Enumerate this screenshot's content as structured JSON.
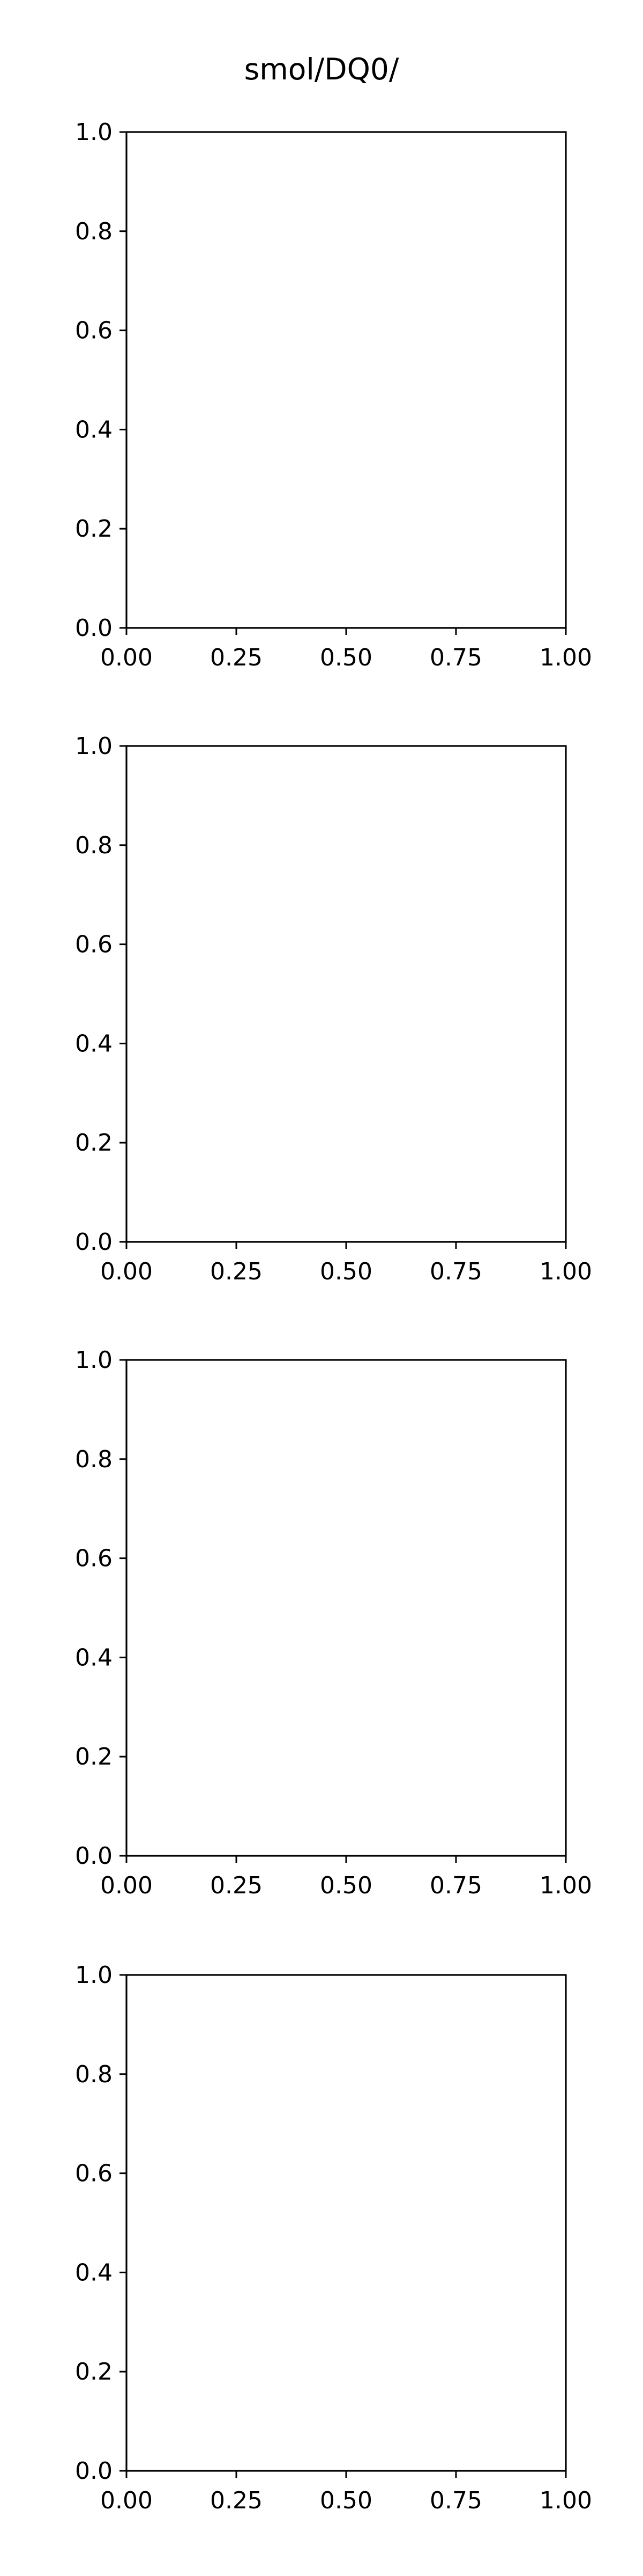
{
  "figure": {
    "title": "smol/DQ0/"
  },
  "chart_data": [
    {
      "type": "line",
      "title": "",
      "xlabel": "",
      "ylabel": "",
      "xlim": [
        0,
        1
      ],
      "ylim": [
        0,
        1
      ],
      "xticks": [
        "0.00",
        "0.25",
        "0.50",
        "0.75",
        "1.00"
      ],
      "yticks": [
        "0.0",
        "0.2",
        "0.4",
        "0.6",
        "0.8",
        "1.0"
      ],
      "series": [],
      "grid": false
    },
    {
      "type": "line",
      "title": "",
      "xlabel": "",
      "ylabel": "",
      "xlim": [
        0,
        1
      ],
      "ylim": [
        0,
        1
      ],
      "xticks": [
        "0.00",
        "0.25",
        "0.50",
        "0.75",
        "1.00"
      ],
      "yticks": [
        "0.0",
        "0.2",
        "0.4",
        "0.6",
        "0.8",
        "1.0"
      ],
      "series": [],
      "grid": false
    },
    {
      "type": "line",
      "title": "",
      "xlabel": "",
      "ylabel": "",
      "xlim": [
        0,
        1
      ],
      "ylim": [
        0,
        1
      ],
      "xticks": [
        "0.00",
        "0.25",
        "0.50",
        "0.75",
        "1.00"
      ],
      "yticks": [
        "0.0",
        "0.2",
        "0.4",
        "0.6",
        "0.8",
        "1.0"
      ],
      "series": [],
      "grid": false
    },
    {
      "type": "line",
      "title": "",
      "xlabel": "",
      "ylabel": "",
      "xlim": [
        0,
        1
      ],
      "ylim": [
        0,
        1
      ],
      "xticks": [
        "0.00",
        "0.25",
        "0.50",
        "0.75",
        "1.00"
      ],
      "yticks": [
        "0.0",
        "0.2",
        "0.4",
        "0.6",
        "0.8",
        "1.0"
      ],
      "series": [],
      "grid": false
    }
  ]
}
